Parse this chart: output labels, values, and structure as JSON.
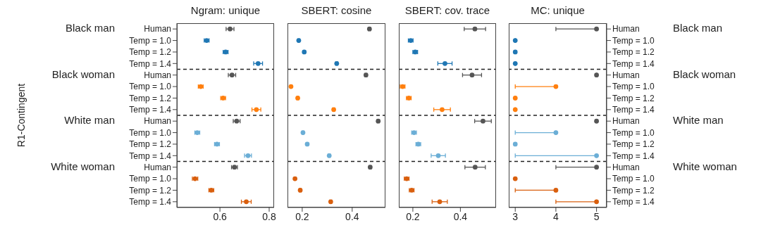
{
  "chart_data": [
    {
      "type": "scatter",
      "orientation": "horizontal",
      "title": "Ngram: unique",
      "ylabel": "R1-Contingent",
      "categories": [
        "Human",
        "Temp = 1.0",
        "Temp = 1.2",
        "Temp = 1.4",
        "Human",
        "Temp = 1.0",
        "Temp = 1.2",
        "Temp = 1.4",
        "Human",
        "Temp = 1.0",
        "Temp = 1.2",
        "Temp = 1.4",
        "Human",
        "Temp = 1.0",
        "Temp = 1.2",
        "Temp = 1.4"
      ],
      "values": [
        0.641,
        0.546,
        0.623,
        0.755,
        0.649,
        0.522,
        0.613,
        0.748,
        0.668,
        0.508,
        0.588,
        0.714,
        0.659,
        0.499,
        0.565,
        0.707
      ],
      "errors": [
        0.016,
        0.01,
        0.01,
        0.018,
        0.015,
        0.01,
        0.01,
        0.018,
        0.014,
        0.01,
        0.01,
        0.014,
        0.012,
        0.011,
        0.01,
        0.02
      ],
      "colors": [
        "#555555",
        "#1f77b4",
        "#1f77b4",
        "#1f77b4",
        "#555555",
        "#ff7f0e",
        "#ff7f0e",
        "#ff7f0e",
        "#555555",
        "#6baed6",
        "#6baed6",
        "#6baed6",
        "#555555",
        "#d95f0e",
        "#d95f0e",
        "#d95f0e"
      ],
      "xlim": [
        0.425,
        0.82
      ],
      "xticks": [
        0.6,
        0.8
      ],
      "marker": "circle",
      "annotations": [
        "Black man",
        "Black woman",
        "White man",
        "White woman"
      ]
    },
    {
      "type": "scatter",
      "orientation": "horizontal",
      "title": "SBERT: cosine",
      "tick_labels": "x",
      "categories": [
        null,
        null,
        null,
        null,
        null,
        null,
        null,
        null,
        null,
        null,
        null,
        null,
        null,
        null,
        null,
        null
      ],
      "values": [
        0.469,
        0.186,
        0.208,
        0.338,
        0.455,
        0.155,
        0.182,
        0.326,
        0.504,
        0.203,
        0.22,
        0.308,
        0.472,
        0.171,
        0.192,
        0.314
      ],
      "errors": [
        0.004,
        0.003,
        0.003,
        0.004,
        0.004,
        0.003,
        0.003,
        0.004,
        0.004,
        0.003,
        0.003,
        0.004,
        0.004,
        0.003,
        0.003,
        0.004
      ],
      "colors": [
        "#555555",
        "#1f77b4",
        "#1f77b4",
        "#1f77b4",
        "#555555",
        "#ff7f0e",
        "#ff7f0e",
        "#ff7f0e",
        "#555555",
        "#6baed6",
        "#6baed6",
        "#6baed6",
        "#555555",
        "#d95f0e",
        "#d95f0e",
        "#d95f0e"
      ],
      "xlim": [
        0.141,
        0.533
      ],
      "xticks": [
        0.2,
        0.4
      ],
      "marker": "circle"
    },
    {
      "type": "scatter",
      "orientation": "horizontal",
      "title": "SBERT: cov. trace",
      "tick_labels": "x",
      "categories": [
        null,
        null,
        null,
        null,
        null,
        null,
        null,
        null,
        null,
        null,
        null,
        null,
        null,
        null,
        null,
        null
      ],
      "values": [
        0.461,
        0.191,
        0.21,
        0.335,
        0.449,
        0.157,
        0.183,
        0.323,
        0.495,
        0.205,
        0.223,
        0.307,
        0.462,
        0.174,
        0.195,
        0.313
      ],
      "errors": [
        0.045,
        0.01,
        0.01,
        0.03,
        0.04,
        0.01,
        0.01,
        0.035,
        0.035,
        0.01,
        0.01,
        0.03,
        0.043,
        0.01,
        0.01,
        0.032
      ],
      "colors": [
        "#555555",
        "#1f77b4",
        "#1f77b4",
        "#1f77b4",
        "#555555",
        "#ff7f0e",
        "#ff7f0e",
        "#ff7f0e",
        "#555555",
        "#6baed6",
        "#6baed6",
        "#6baed6",
        "#555555",
        "#d95f0e",
        "#d95f0e",
        "#d95f0e"
      ],
      "xlim": [
        0.141,
        0.55
      ],
      "xticks": [
        0.2,
        0.4
      ],
      "marker": "circle"
    },
    {
      "type": "scatter",
      "orientation": "horizontal",
      "title": "MC: unique",
      "categories": [
        "Human",
        "Temp = 1.0",
        "Temp = 1.2",
        "Temp = 1.4",
        "Human",
        "Temp = 1.0",
        "Temp = 1.2",
        "Temp = 1.4",
        "Human",
        "Temp = 1.0",
        "Temp = 1.2",
        "Temp = 1.4",
        "Human",
        "Temp = 1.0",
        "Temp = 1.2",
        "Temp = 1.4"
      ],
      "values": [
        5,
        3,
        3,
        3,
        5,
        4,
        3,
        3,
        5,
        4,
        3,
        5,
        5,
        3,
        4,
        5
      ],
      "errors": [
        [
          4,
          5
        ],
        null,
        null,
        null,
        null,
        [
          3,
          4
        ],
        null,
        null,
        null,
        [
          3,
          4
        ],
        null,
        [
          3,
          5
        ],
        [
          4,
          5
        ],
        null,
        [
          3,
          4
        ],
        [
          4,
          5
        ]
      ],
      "colors": [
        "#555555",
        "#1f77b4",
        "#1f77b4",
        "#1f77b4",
        "#555555",
        "#ff7f0e",
        "#ff7f0e",
        "#ff7f0e",
        "#555555",
        "#6baed6",
        "#6baed6",
        "#6baed6",
        "#555555",
        "#d95f0e",
        "#d95f0e",
        "#d95f0e"
      ],
      "xlim": [
        2.84,
        5.25
      ],
      "xticks": [
        3,
        4,
        5
      ],
      "marker": "circle",
      "annotations": [
        "Black man",
        "Black woman",
        "White man",
        "White woman"
      ]
    }
  ]
}
